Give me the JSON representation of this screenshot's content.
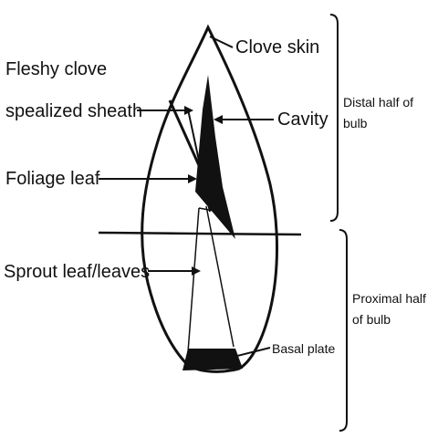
{
  "labels": {
    "fleshy_clove_line1": "Fleshy clove",
    "fleshy_clove_line2": "spealized sheath",
    "clove_skin": "Clove skin",
    "cavity": "Cavity",
    "foliage_leaf": "Foliage leaf",
    "sprout_leaf": "Sprout leaf/leaves",
    "basal_plate": "Basal plate",
    "distal_line1": "Distal half of",
    "distal_line2": "bulb",
    "proximal_line1": "Proximal half",
    "proximal_line2": "of bulb"
  },
  "colors": {
    "ink": "#111111",
    "background": "#ffffff"
  }
}
